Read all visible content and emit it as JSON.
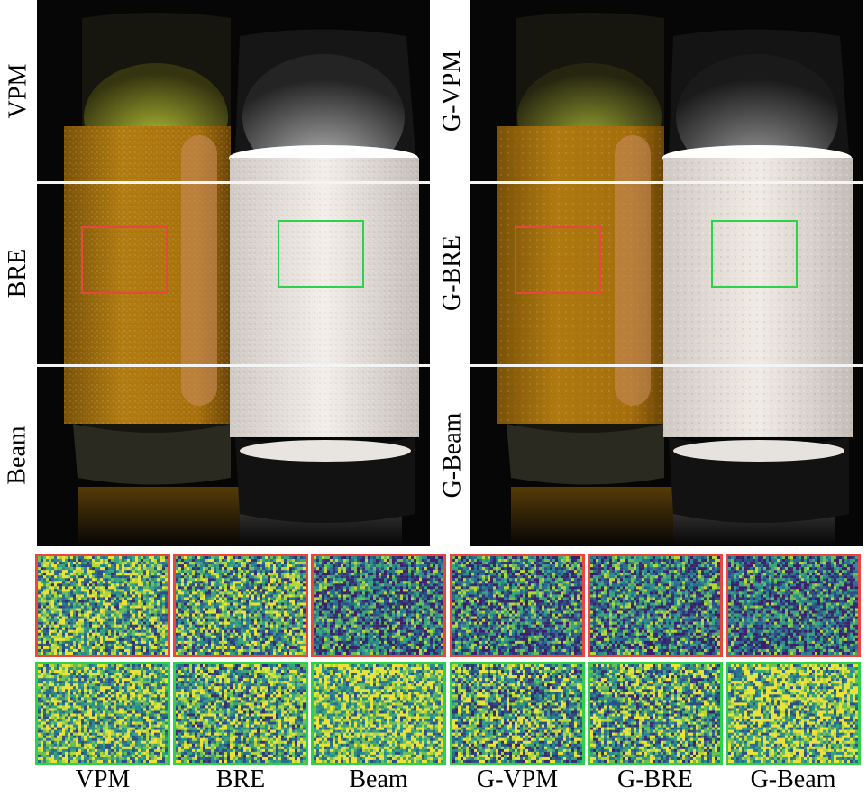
{
  "left_panel": {
    "row_labels": [
      "VPM",
      "BRE",
      "Beam"
    ]
  },
  "right_panel": {
    "row_labels": [
      "G-VPM",
      "G-BRE",
      "G-Beam"
    ]
  },
  "crop_columns": [
    "VPM",
    "BRE",
    "Beam",
    "G-VPM",
    "G-BRE",
    "G-Beam"
  ],
  "colors": {
    "red_box": "#e8463f",
    "green_box": "#2fd04a",
    "juice": "#c98d12",
    "milk": "#ece6e2",
    "noise_low": "#3a1f6e",
    "noise_mid": "#2a8a8c",
    "noise_high": "#e8e23a"
  }
}
